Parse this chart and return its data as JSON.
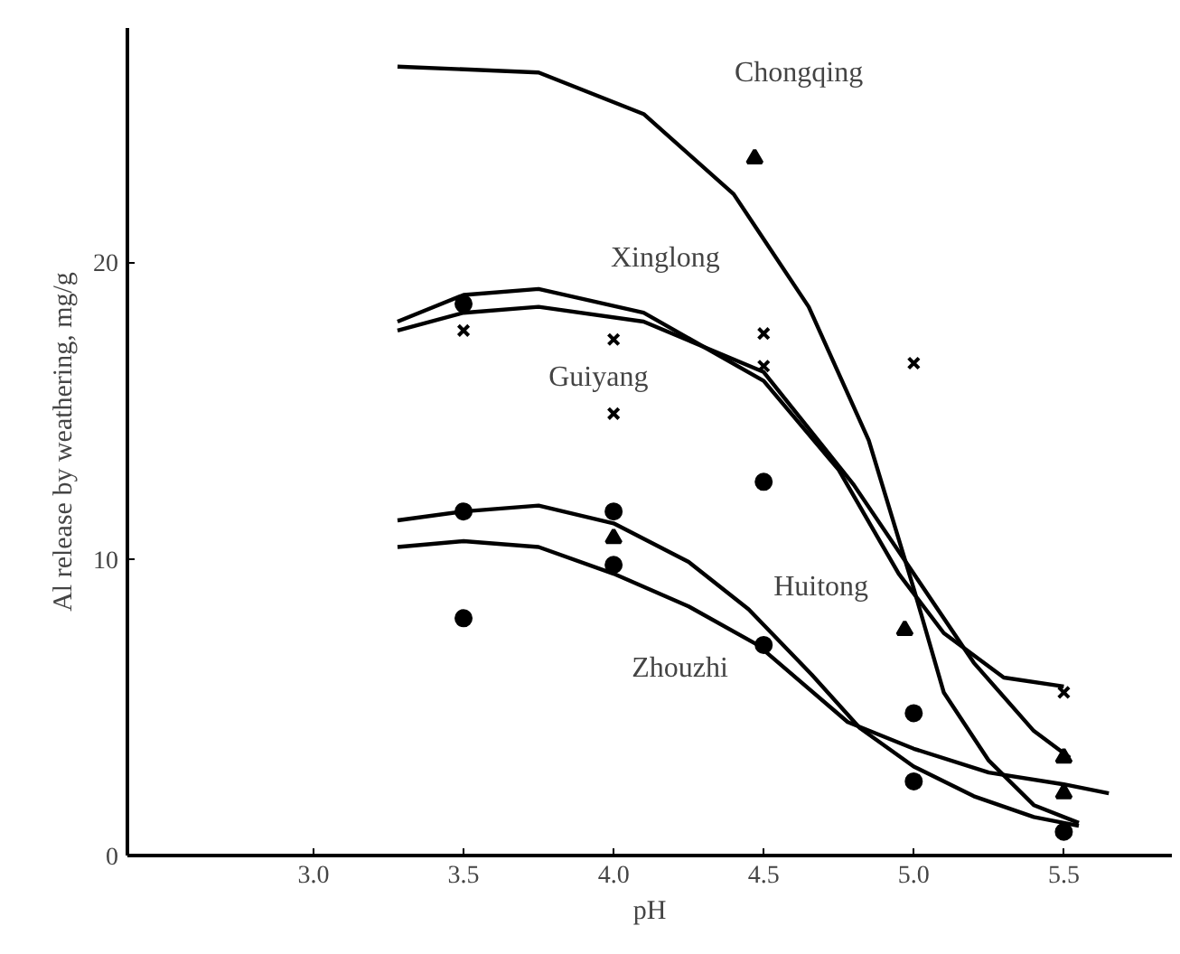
{
  "chart_data": {
    "type": "line",
    "xlabel": "pH",
    "ylabel": "Al release by weathering, mg/g",
    "xlim": [
      2.38,
      5.86
    ],
    "ylim": [
      0,
      27.9
    ],
    "xticks": [
      {
        "value": 3,
        "label": "3.0"
      },
      3.5,
      {
        "value": 4,
        "label": "4.0"
      },
      4.5,
      {
        "value": 5,
        "label": "5.0"
      },
      5.5
    ],
    "yticks": [
      0,
      10,
      20
    ],
    "grid": false,
    "legend": false,
    "marker": "none",
    "line_style": "solid",
    "series": [
      {
        "name": "Chongqing",
        "color": "#000000",
        "x": [
          3.28,
          3.75,
          4.1,
          4.4,
          4.65,
          4.85,
          5.0,
          5.1,
          5.25,
          5.4,
          5.55
        ],
        "values": [
          26.6,
          26.4,
          25.0,
          22.3,
          18.5,
          14.0,
          9.0,
          5.5,
          3.2,
          1.7,
          1.1
        ]
      },
      {
        "name": "Xinglong",
        "color": "#000000",
        "x": [
          3.28,
          3.5,
          3.75,
          4.1,
          4.5,
          4.75,
          4.95,
          5.1,
          5.3,
          5.5
        ],
        "values": [
          18.0,
          18.9,
          19.1,
          18.3,
          16.0,
          13.0,
          9.5,
          7.5,
          6.0,
          5.7
        ]
      },
      {
        "name": "Guiyang",
        "color": "#000000",
        "x": [
          3.28,
          3.5,
          3.75,
          4.1,
          4.5,
          4.8,
          5.0,
          5.2,
          5.4,
          5.52
        ],
        "values": [
          17.7,
          18.3,
          18.5,
          18.0,
          16.3,
          12.5,
          9.5,
          6.5,
          4.2,
          3.3
        ]
      },
      {
        "name": "Huitong",
        "color": "#000000",
        "x": [
          3.28,
          3.5,
          3.75,
          4.0,
          4.25,
          4.45,
          4.66,
          4.82,
          5.0,
          5.2,
          5.4,
          5.55
        ],
        "values": [
          11.3,
          11.6,
          11.8,
          11.2,
          9.9,
          8.3,
          6.1,
          4.3,
          3.0,
          2.0,
          1.3,
          1.0
        ]
      },
      {
        "name": "Zhouzhi",
        "color": "#000000",
        "x": [
          3.28,
          3.5,
          3.75,
          4.0,
          4.25,
          4.48,
          4.78,
          5.0,
          5.25,
          5.5,
          5.65
        ],
        "values": [
          10.4,
          10.6,
          10.4,
          9.5,
          8.4,
          7.1,
          4.5,
          3.6,
          2.8,
          2.4,
          2.1
        ]
      },
      {
        "type": "scatter",
        "marker": "triangle",
        "color": "#000000",
        "x": [
          4.47,
          4.0,
          4.97,
          5.5,
          5.5
        ],
        "values": [
          23.5,
          10.7,
          7.6,
          3.3,
          2.1
        ]
      },
      {
        "type": "scatter",
        "marker": "cross",
        "color": "#000000",
        "x": [
          3.5,
          4.0,
          4.0,
          4.5,
          4.5,
          5.0,
          5.5
        ],
        "values": [
          17.7,
          17.4,
          14.9,
          17.6,
          16.5,
          16.6,
          5.5
        ]
      },
      {
        "type": "scatter",
        "marker": "circle",
        "color": "#000000",
        "x": [
          3.5,
          4.5,
          3.5,
          3.5,
          4.0,
          4.0,
          4.5,
          5.0,
          5.0,
          5.5
        ],
        "values": [
          18.6,
          12.6,
          8.0,
          11.6,
          11.6,
          9.8,
          7.1,
          4.8,
          2.5,
          0.8
        ]
      }
    ]
  }
}
